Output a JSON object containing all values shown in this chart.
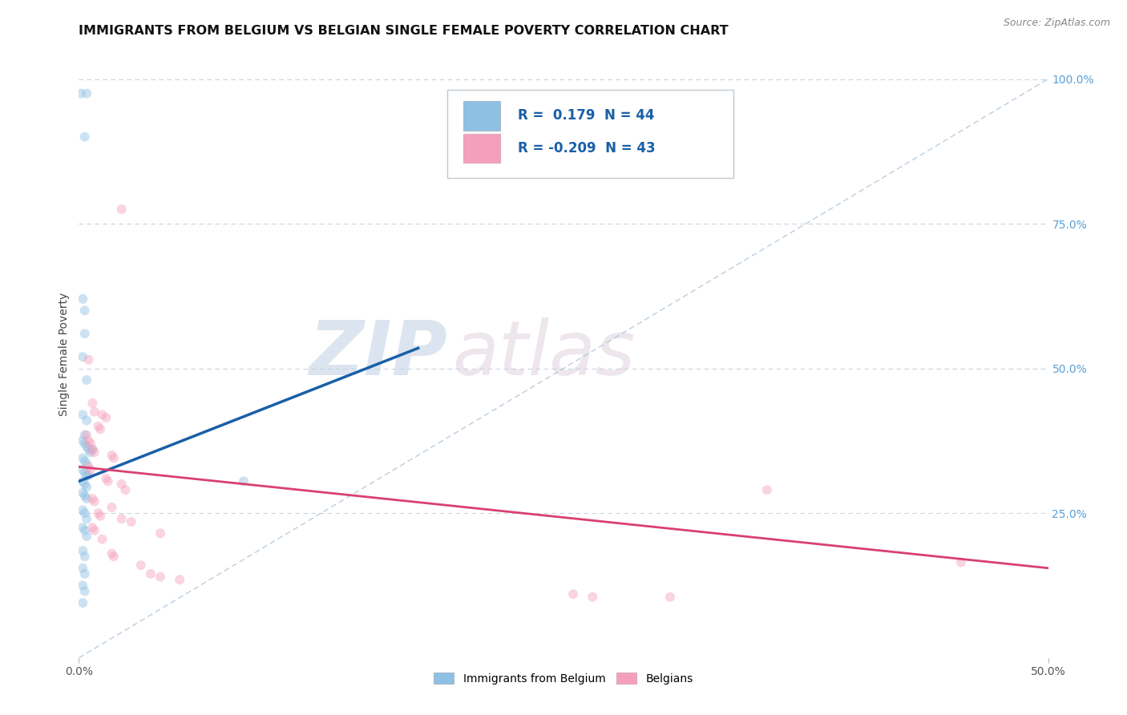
{
  "title": "IMMIGRANTS FROM BELGIUM VS BELGIAN SINGLE FEMALE POVERTY CORRELATION CHART",
  "source": "Source: ZipAtlas.com",
  "ylabel": "Single Female Poverty",
  "right_yticks": [
    "100.0%",
    "75.0%",
    "50.0%",
    "25.0%"
  ],
  "right_ytick_vals": [
    1.0,
    0.75,
    0.5,
    0.25
  ],
  "legend_r1": "0.179",
  "legend_n1": "44",
  "legend_r2": "-0.209",
  "legend_n2": "43",
  "watermark_zip": "ZIP",
  "watermark_atlas": "atlas",
  "blue_scatter": [
    [
      0.001,
      0.975
    ],
    [
      0.004,
      0.975
    ],
    [
      0.003,
      0.9
    ],
    [
      0.002,
      0.62
    ],
    [
      0.003,
      0.6
    ],
    [
      0.003,
      0.56
    ],
    [
      0.002,
      0.52
    ],
    [
      0.004,
      0.48
    ],
    [
      0.002,
      0.42
    ],
    [
      0.004,
      0.41
    ],
    [
      0.003,
      0.385
    ],
    [
      0.002,
      0.375
    ],
    [
      0.003,
      0.37
    ],
    [
      0.004,
      0.365
    ],
    [
      0.005,
      0.36
    ],
    [
      0.006,
      0.355
    ],
    [
      0.007,
      0.36
    ],
    [
      0.002,
      0.345
    ],
    [
      0.003,
      0.34
    ],
    [
      0.004,
      0.335
    ],
    [
      0.002,
      0.325
    ],
    [
      0.003,
      0.32
    ],
    [
      0.004,
      0.315
    ],
    [
      0.005,
      0.315
    ],
    [
      0.002,
      0.305
    ],
    [
      0.003,
      0.3
    ],
    [
      0.004,
      0.295
    ],
    [
      0.002,
      0.285
    ],
    [
      0.003,
      0.28
    ],
    [
      0.004,
      0.275
    ],
    [
      0.002,
      0.255
    ],
    [
      0.003,
      0.25
    ],
    [
      0.004,
      0.24
    ],
    [
      0.002,
      0.225
    ],
    [
      0.003,
      0.22
    ],
    [
      0.004,
      0.21
    ],
    [
      0.002,
      0.185
    ],
    [
      0.003,
      0.175
    ],
    [
      0.002,
      0.155
    ],
    [
      0.003,
      0.145
    ],
    [
      0.002,
      0.125
    ],
    [
      0.003,
      0.115
    ],
    [
      0.085,
      0.305
    ],
    [
      0.002,
      0.095
    ]
  ],
  "pink_scatter": [
    [
      0.022,
      0.775
    ],
    [
      0.005,
      0.515
    ],
    [
      0.007,
      0.44
    ],
    [
      0.008,
      0.425
    ],
    [
      0.012,
      0.42
    ],
    [
      0.014,
      0.415
    ],
    [
      0.01,
      0.4
    ],
    [
      0.011,
      0.395
    ],
    [
      0.004,
      0.385
    ],
    [
      0.005,
      0.375
    ],
    [
      0.006,
      0.37
    ],
    [
      0.007,
      0.36
    ],
    [
      0.008,
      0.355
    ],
    [
      0.017,
      0.35
    ],
    [
      0.018,
      0.345
    ],
    [
      0.005,
      0.33
    ],
    [
      0.006,
      0.325
    ],
    [
      0.014,
      0.31
    ],
    [
      0.015,
      0.305
    ],
    [
      0.022,
      0.3
    ],
    [
      0.024,
      0.29
    ],
    [
      0.007,
      0.275
    ],
    [
      0.008,
      0.27
    ],
    [
      0.017,
      0.26
    ],
    [
      0.01,
      0.25
    ],
    [
      0.011,
      0.245
    ],
    [
      0.022,
      0.24
    ],
    [
      0.027,
      0.235
    ],
    [
      0.007,
      0.225
    ],
    [
      0.008,
      0.22
    ],
    [
      0.012,
      0.205
    ],
    [
      0.042,
      0.215
    ],
    [
      0.017,
      0.18
    ],
    [
      0.018,
      0.175
    ],
    [
      0.032,
      0.16
    ],
    [
      0.037,
      0.145
    ],
    [
      0.042,
      0.14
    ],
    [
      0.052,
      0.135
    ],
    [
      0.355,
      0.29
    ],
    [
      0.305,
      0.105
    ],
    [
      0.455,
      0.165
    ],
    [
      0.255,
      0.11
    ],
    [
      0.265,
      0.105
    ]
  ],
  "blue_line": [
    [
      0.0,
      0.305
    ],
    [
      0.175,
      0.535
    ]
  ],
  "pink_line": [
    [
      0.0,
      0.33
    ],
    [
      0.5,
      0.155
    ]
  ],
  "diag_line": [
    [
      0.0,
      0.0
    ],
    [
      0.5,
      1.0
    ]
  ],
  "xlim": [
    0.0,
    0.5
  ],
  "ylim": [
    0.0,
    1.05
  ],
  "scatter_size": 75,
  "scatter_alpha": 0.45,
  "blue_color": "#8ec0e4",
  "pink_color": "#f4a0bc",
  "blue_line_color": "#1a5fa8",
  "pink_line_color": "#d94070",
  "diag_line_color": "#b0c4d8",
  "grid_color": "#c8d4e0",
  "bg_color": "#ffffff"
}
